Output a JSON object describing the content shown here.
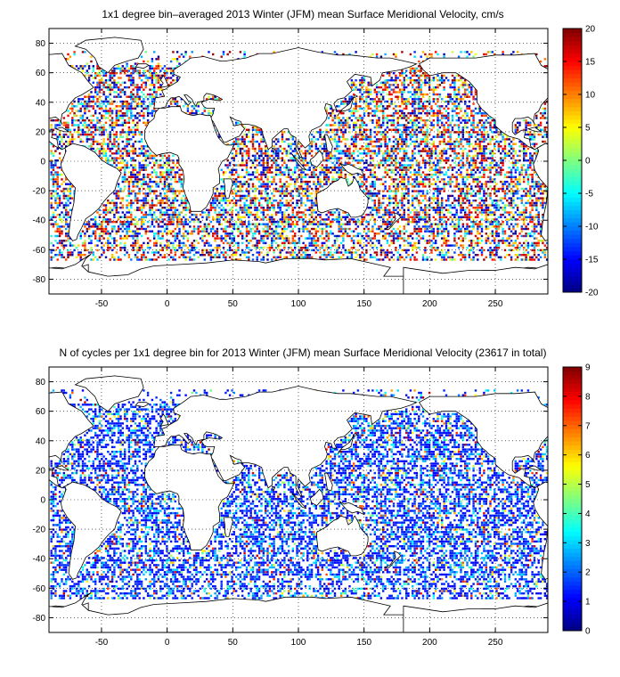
{
  "chart_data": [
    {
      "type": "heatmap",
      "title": "1x1 degree bin–averaged 2013 Winter (JFM) mean Surface Meridional Velocity, cm/s",
      "xlabel": "",
      "ylabel": "",
      "xlim": [
        -90,
        290
      ],
      "ylim": [
        -90,
        90
      ],
      "x_ticks": [
        -50,
        0,
        50,
        100,
        150,
        200,
        250
      ],
      "y_ticks": [
        -80,
        -60,
        -40,
        -20,
        0,
        20,
        40,
        60,
        80
      ],
      "grid": true,
      "colorbar": {
        "min": -20,
        "max": 20,
        "ticks": [
          -20,
          -15,
          -10,
          -5,
          0,
          5,
          10,
          15,
          20
        ],
        "colormap": "jet"
      },
      "value_range": [
        -20,
        20
      ],
      "density": 0.55
    },
    {
      "type": "heatmap",
      "title": "N of cycles per 1x1 degree bin for 2013 Winter (JFM) mean Surface Meridional Velocity (23617 in total)",
      "xlabel": "",
      "ylabel": "",
      "xlim": [
        -90,
        290
      ],
      "ylim": [
        -90,
        90
      ],
      "x_ticks": [
        -50,
        0,
        50,
        100,
        150,
        200,
        250
      ],
      "y_ticks": [
        -80,
        -60,
        -40,
        -20,
        0,
        20,
        40,
        60,
        80
      ],
      "grid": true,
      "colorbar": {
        "min": 0,
        "max": 9,
        "ticks": [
          0,
          1,
          2,
          3,
          4,
          5,
          6,
          7,
          8,
          9
        ],
        "colormap": "jet"
      },
      "value_range": [
        0,
        9
      ],
      "density": 0.55
    }
  ]
}
